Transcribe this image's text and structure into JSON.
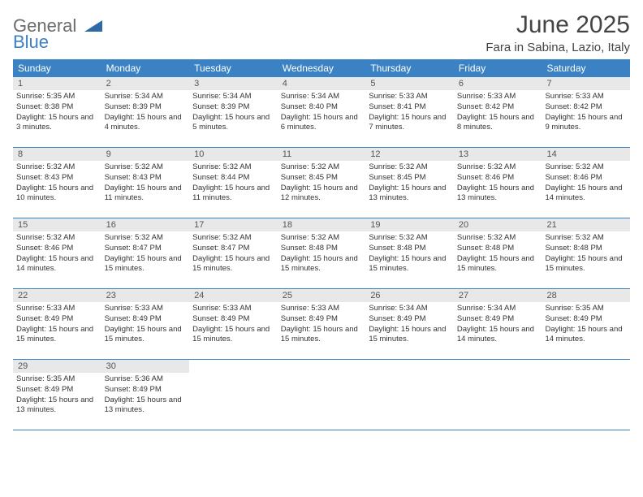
{
  "logo": {
    "line1": "General",
    "line2": "Blue",
    "shape_color": "#2f6aa8"
  },
  "title": "June 2025",
  "location": "Fara in Sabina, Lazio, Italy",
  "colors": {
    "header_bg": "#3b82c4",
    "header_fg": "#ffffff",
    "daynum_bg": "#e8e8e8",
    "rule": "#3b7fc4",
    "text": "#333333"
  },
  "days_of_week": [
    "Sunday",
    "Monday",
    "Tuesday",
    "Wednesday",
    "Thursday",
    "Friday",
    "Saturday"
  ],
  "weeks": [
    [
      {
        "n": "1",
        "sr": "5:35 AM",
        "ss": "8:38 PM",
        "dl": "15 hours and 3 minutes."
      },
      {
        "n": "2",
        "sr": "5:34 AM",
        "ss": "8:39 PM",
        "dl": "15 hours and 4 minutes."
      },
      {
        "n": "3",
        "sr": "5:34 AM",
        "ss": "8:39 PM",
        "dl": "15 hours and 5 minutes."
      },
      {
        "n": "4",
        "sr": "5:34 AM",
        "ss": "8:40 PM",
        "dl": "15 hours and 6 minutes."
      },
      {
        "n": "5",
        "sr": "5:33 AM",
        "ss": "8:41 PM",
        "dl": "15 hours and 7 minutes."
      },
      {
        "n": "6",
        "sr": "5:33 AM",
        "ss": "8:42 PM",
        "dl": "15 hours and 8 minutes."
      },
      {
        "n": "7",
        "sr": "5:33 AM",
        "ss": "8:42 PM",
        "dl": "15 hours and 9 minutes."
      }
    ],
    [
      {
        "n": "8",
        "sr": "5:32 AM",
        "ss": "8:43 PM",
        "dl": "15 hours and 10 minutes."
      },
      {
        "n": "9",
        "sr": "5:32 AM",
        "ss": "8:43 PM",
        "dl": "15 hours and 11 minutes."
      },
      {
        "n": "10",
        "sr": "5:32 AM",
        "ss": "8:44 PM",
        "dl": "15 hours and 11 minutes."
      },
      {
        "n": "11",
        "sr": "5:32 AM",
        "ss": "8:45 PM",
        "dl": "15 hours and 12 minutes."
      },
      {
        "n": "12",
        "sr": "5:32 AM",
        "ss": "8:45 PM",
        "dl": "15 hours and 13 minutes."
      },
      {
        "n": "13",
        "sr": "5:32 AM",
        "ss": "8:46 PM",
        "dl": "15 hours and 13 minutes."
      },
      {
        "n": "14",
        "sr": "5:32 AM",
        "ss": "8:46 PM",
        "dl": "15 hours and 14 minutes."
      }
    ],
    [
      {
        "n": "15",
        "sr": "5:32 AM",
        "ss": "8:46 PM",
        "dl": "15 hours and 14 minutes."
      },
      {
        "n": "16",
        "sr": "5:32 AM",
        "ss": "8:47 PM",
        "dl": "15 hours and 15 minutes."
      },
      {
        "n": "17",
        "sr": "5:32 AM",
        "ss": "8:47 PM",
        "dl": "15 hours and 15 minutes."
      },
      {
        "n": "18",
        "sr": "5:32 AM",
        "ss": "8:48 PM",
        "dl": "15 hours and 15 minutes."
      },
      {
        "n": "19",
        "sr": "5:32 AM",
        "ss": "8:48 PM",
        "dl": "15 hours and 15 minutes."
      },
      {
        "n": "20",
        "sr": "5:32 AM",
        "ss": "8:48 PM",
        "dl": "15 hours and 15 minutes."
      },
      {
        "n": "21",
        "sr": "5:32 AM",
        "ss": "8:48 PM",
        "dl": "15 hours and 15 minutes."
      }
    ],
    [
      {
        "n": "22",
        "sr": "5:33 AM",
        "ss": "8:49 PM",
        "dl": "15 hours and 15 minutes."
      },
      {
        "n": "23",
        "sr": "5:33 AM",
        "ss": "8:49 PM",
        "dl": "15 hours and 15 minutes."
      },
      {
        "n": "24",
        "sr": "5:33 AM",
        "ss": "8:49 PM",
        "dl": "15 hours and 15 minutes."
      },
      {
        "n": "25",
        "sr": "5:33 AM",
        "ss": "8:49 PM",
        "dl": "15 hours and 15 minutes."
      },
      {
        "n": "26",
        "sr": "5:34 AM",
        "ss": "8:49 PM",
        "dl": "15 hours and 15 minutes."
      },
      {
        "n": "27",
        "sr": "5:34 AM",
        "ss": "8:49 PM",
        "dl": "15 hours and 14 minutes."
      },
      {
        "n": "28",
        "sr": "5:35 AM",
        "ss": "8:49 PM",
        "dl": "15 hours and 14 minutes."
      }
    ],
    [
      {
        "n": "29",
        "sr": "5:35 AM",
        "ss": "8:49 PM",
        "dl": "15 hours and 13 minutes."
      },
      {
        "n": "30",
        "sr": "5:36 AM",
        "ss": "8:49 PM",
        "dl": "15 hours and 13 minutes."
      },
      null,
      null,
      null,
      null,
      null
    ]
  ],
  "labels": {
    "sunrise": "Sunrise:",
    "sunset": "Sunset:",
    "daylight": "Daylight:"
  }
}
